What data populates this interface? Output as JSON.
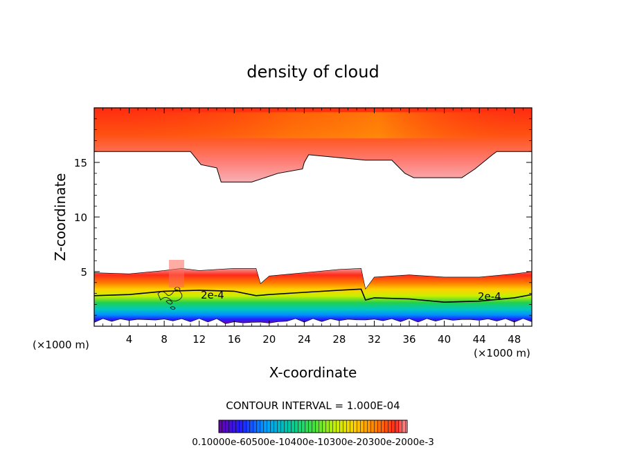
{
  "chart_data": {
    "type": "contour",
    "title": "density of cloud",
    "xlabel": "X-coordinate",
    "ylabel": "Z-coordinate",
    "x_unit_label": "(×1000 m)",
    "z_unit_label": "(×1000 m)",
    "xlim": [
      0,
      50
    ],
    "ylim": [
      0,
      20
    ],
    "x_ticks": [
      "4",
      "8",
      "12",
      "16",
      "20",
      "24",
      "28",
      "32",
      "36",
      "40",
      "44",
      "48"
    ],
    "y_ticks": [
      "5",
      "10",
      "15"
    ],
    "contour_interval_text": "CONTOUR INTERVAL = 1.000E-04",
    "contour_labels": [
      "2e-4",
      "2e-4"
    ],
    "colorbar_text": "0.10000e-60500e-10400e-10300e-20300e-2000e-3",
    "upper_layer_boundary": {
      "x": [
        0,
        11,
        11.5,
        12.2,
        14,
        14.5,
        18,
        19.5,
        21,
        23.8,
        24,
        24.5,
        31,
        34,
        35.5,
        36.5,
        42,
        43.5,
        45.5,
        46,
        50
      ],
      "z": [
        16,
        16,
        15.5,
        14.8,
        14.5,
        13.2,
        13.2,
        13.6,
        14,
        14.4,
        15,
        15.7,
        15.2,
        15.2,
        14,
        13.6,
        13.6,
        14.4,
        15.7,
        16,
        16
      ]
    },
    "lower_layer_top": {
      "x": [
        0,
        4,
        8,
        10,
        12,
        16,
        18.5,
        19,
        20,
        24,
        28,
        30.5,
        31,
        32,
        36,
        40,
        44,
        48,
        50
      ],
      "z": [
        4.9,
        4.8,
        5.1,
        5.3,
        5.1,
        5.3,
        5.3,
        3.9,
        4.6,
        4.9,
        5.2,
        5.3,
        3.4,
        4.5,
        4.7,
        4.5,
        4.5,
        4.8,
        5
      ]
    },
    "contour_2e-4": {
      "x": [
        0,
        4,
        8,
        12,
        16,
        18.5,
        20,
        24,
        28,
        30.5,
        31,
        32,
        36,
        40,
        44,
        48,
        50
      ],
      "z": [
        2.8,
        2.9,
        3.2,
        3.3,
        3.2,
        2.8,
        2.9,
        3.1,
        3.3,
        3.4,
        2.4,
        2.6,
        2.5,
        2.2,
        2.3,
        2.6,
        2.9
      ]
    },
    "colorscale": [
      "#6a00a8",
      "#1a1aff",
      "#00b4ff",
      "#00d26a",
      "#6fe000",
      "#e6e600",
      "#ffb400",
      "#ff6a1a",
      "#ff2a1a",
      "#f4a0a8"
    ]
  }
}
